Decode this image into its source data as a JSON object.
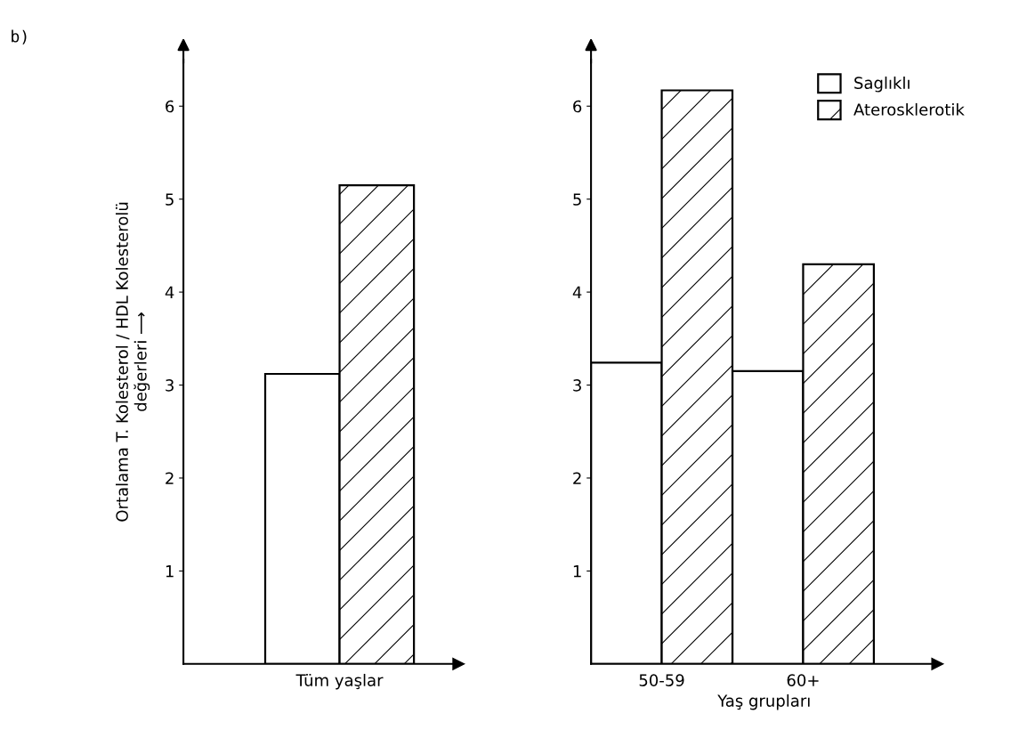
{
  "chart_data": [
    {
      "type": "bar",
      "categories": [
        "Tüm yaşlar"
      ],
      "ylabel": "Ortalama T. Kolesterol / HDL Kolesterolü\ndeğerleri ⟶",
      "annotations": [
        "b)"
      ],
      "series": [
        {
          "color": "#ffffff",
          "values": [
            3.12
          ]
        },
        {
          "color": "#000000",
          "values": [
            5.15
          ]
        }
      ],
      "ylim": [
        0,
        6.5
      ],
      "yticks": [
        1,
        2,
        3,
        4,
        5,
        6
      ],
      "grid": false,
      "legend": false
    },
    {
      "type": "bar",
      "categories": [
        "50-59",
        "60+"
      ],
      "xlabel": "Yaş grupları",
      "series": [
        {
          "name": "Saglıklı",
          "color": "#ffffff",
          "values": [
            3.24,
            3.15
          ]
        },
        {
          "name": "Aterosklerotik",
          "color": "#000000",
          "values": [
            6.17,
            4.3
          ]
        }
      ],
      "ylim": [
        0,
        6.5
      ],
      "yticks": [
        1,
        2,
        3,
        4,
        5,
        6
      ],
      "grid": false,
      "legend": "upper right"
    }
  ]
}
